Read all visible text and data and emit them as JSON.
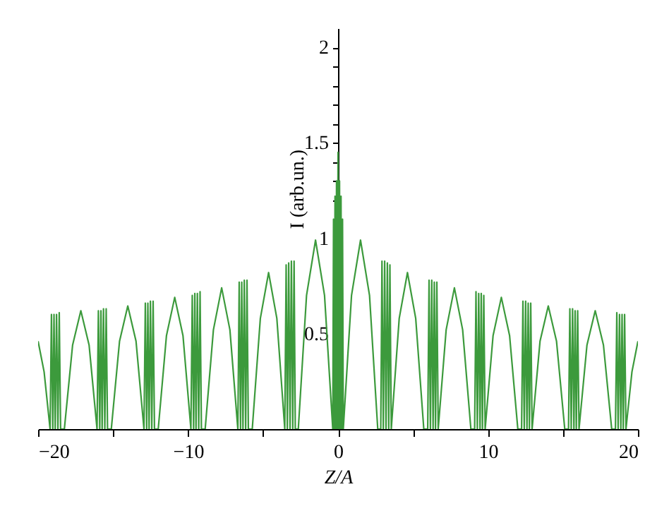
{
  "chart_data": {
    "type": "line",
    "xlabel": "Z/A",
    "ylabel": "I (arb.un.)",
    "xlim": [
      -20,
      20
    ],
    "ylim": [
      0,
      2.1
    ],
    "xticks": [
      -20,
      {
        "value": -15,
        "label": null
      },
      -10,
      {
        "value": -5,
        "label": null
      },
      0,
      {
        "value": 5,
        "label": null
      },
      10,
      {
        "value": 15,
        "label": null
      },
      20
    ],
    "yticks": [
      {
        "value": 0.1,
        "label": null
      },
      {
        "value": 0.2,
        "label": null
      },
      {
        "value": 0.3,
        "label": null
      },
      {
        "value": 0.4,
        "label": null
      },
      0.5,
      {
        "value": 0.6,
        "label": null
      },
      {
        "value": 0.7,
        "label": null
      },
      {
        "value": 0.8,
        "label": null
      },
      {
        "value": 0.9,
        "label": null
      },
      1,
      {
        "value": 1.1,
        "label": null
      },
      {
        "value": 1.2,
        "label": null
      },
      {
        "value": 1.3,
        "label": null
      },
      {
        "value": 1.4,
        "label": null
      },
      1.5,
      {
        "value": 1.6,
        "label": null
      },
      {
        "value": 1.7,
        "label": null
      },
      {
        "value": 1.8,
        "label": null
      },
      {
        "value": 1.9,
        "label": null
      },
      2
    ],
    "grid": false,
    "marker": "none",
    "line_style": "solid",
    "series": [
      {
        "color": "#3c9a3c",
        "x": [
          -20,
          -19.6,
          -19.2,
          -19.11,
          -19.02,
          -18.94,
          -18.86,
          -18.77,
          -18.68,
          -18.59,
          -18.5,
          -18.25,
          -17.7,
          -17.15,
          -16.6,
          -16.07,
          -15.98,
          -15.89,
          -15.81,
          -15.73,
          -15.64,
          -15.55,
          -15.46,
          -15.37,
          -15.12,
          -14.57,
          -14.02,
          -13.47,
          -12.94,
          -12.85,
          -12.76,
          -12.68,
          -12.6,
          -12.51,
          -12.42,
          -12.33,
          -12.24,
          -11.99,
          -11.44,
          -10.89,
          -10.34,
          -9.81,
          -9.72,
          -9.63,
          -9.55,
          -9.47,
          -9.38,
          -9.29,
          -9.2,
          -9.11,
          -8.86,
          -8.31,
          -7.76,
          -7.21,
          -6.68,
          -6.59,
          -6.5,
          -6.42,
          -6.34,
          -6.25,
          -6.16,
          -6.07,
          -5.98,
          -5.72,
          -5.18,
          -4.63,
          -4.08,
          -3.55,
          -3.46,
          -3.38,
          -3.29,
          -3.2,
          -3.11,
          -3.02,
          -2.93,
          -2.85,
          -2.65,
          -2.1,
          -1.5,
          -0.9,
          -0.35,
          -0.3,
          -0.25,
          -0.2,
          -0.15,
          -0.1,
          -0.05,
          0,
          0.05,
          0.1,
          0.15,
          0.2,
          0.25,
          0.3,
          0.35,
          0.9,
          1.5,
          2.1,
          2.65,
          2.85,
          2.93,
          3.02,
          3.11,
          3.2,
          3.29,
          3.38,
          3.46,
          3.55,
          4.08,
          4.63,
          5.18,
          5.72,
          5.98,
          6.07,
          6.16,
          6.25,
          6.34,
          6.42,
          6.5,
          6.59,
          6.68,
          7.21,
          7.76,
          8.31,
          8.86,
          9.11,
          9.2,
          9.29,
          9.38,
          9.47,
          9.55,
          9.63,
          9.72,
          9.81,
          10.34,
          10.89,
          11.44,
          11.99,
          12.24,
          12.33,
          12.42,
          12.51,
          12.6,
          12.68,
          12.76,
          12.85,
          12.94,
          13.47,
          14.02,
          14.57,
          15.12,
          15.37,
          15.46,
          15.55,
          15.64,
          15.73,
          15.81,
          15.89,
          15.98,
          16.07,
          16.6,
          17.15,
          17.7,
          18.25,
          18.5,
          18.59,
          18.68,
          18.77,
          18.86,
          18.94,
          19.02,
          19.11,
          19.2,
          19.6,
          20
        ],
        "values": [
          0.46,
          0.3,
          0,
          0.6,
          0,
          0.6,
          0,
          0.6,
          0,
          0.61,
          0,
          0,
          0.44,
          0.62,
          0.44,
          0,
          0.62,
          0,
          0.62,
          0,
          0.63,
          0,
          0.63,
          0,
          0,
          0.46,
          0.645,
          0.46,
          0,
          0.66,
          0,
          0.66,
          0,
          0.67,
          0,
          0.67,
          0,
          0,
          0.49,
          0.69,
          0.49,
          0,
          0.7,
          0,
          0.71,
          0,
          0.71,
          0,
          0.72,
          0,
          0,
          0.52,
          0.74,
          0.52,
          0,
          0.77,
          0,
          0.77,
          0,
          0.78,
          0,
          0.78,
          0,
          0,
          0.58,
          0.82,
          0.58,
          0,
          0.86,
          0,
          0.87,
          0,
          0.88,
          0,
          0.88,
          0,
          0,
          0.7,
          0.99,
          0.7,
          0,
          1.1,
          0,
          1.22,
          0,
          1.3,
          0,
          1.45,
          0,
          1.3,
          0,
          1.22,
          0,
          1.1,
          0,
          0.7,
          0.99,
          0.7,
          0,
          0,
          0.88,
          0,
          0.88,
          0,
          0.87,
          0,
          0.86,
          0,
          0.58,
          0.82,
          0.58,
          0,
          0,
          0.78,
          0,
          0.78,
          0,
          0.77,
          0,
          0.77,
          0,
          0.52,
          0.74,
          0.52,
          0,
          0,
          0.72,
          0,
          0.71,
          0,
          0.71,
          0,
          0.7,
          0,
          0.49,
          0.69,
          0.49,
          0,
          0,
          0.67,
          0,
          0.67,
          0,
          0.66,
          0,
          0.66,
          0,
          0.46,
          0.645,
          0.46,
          0,
          0,
          0.63,
          0,
          0.63,
          0,
          0.62,
          0,
          0.62,
          0,
          0.44,
          0.62,
          0.44,
          0,
          0,
          0.61,
          0,
          0.6,
          0,
          0.6,
          0,
          0.6,
          0,
          0.3,
          0.46
        ]
      }
    ]
  }
}
